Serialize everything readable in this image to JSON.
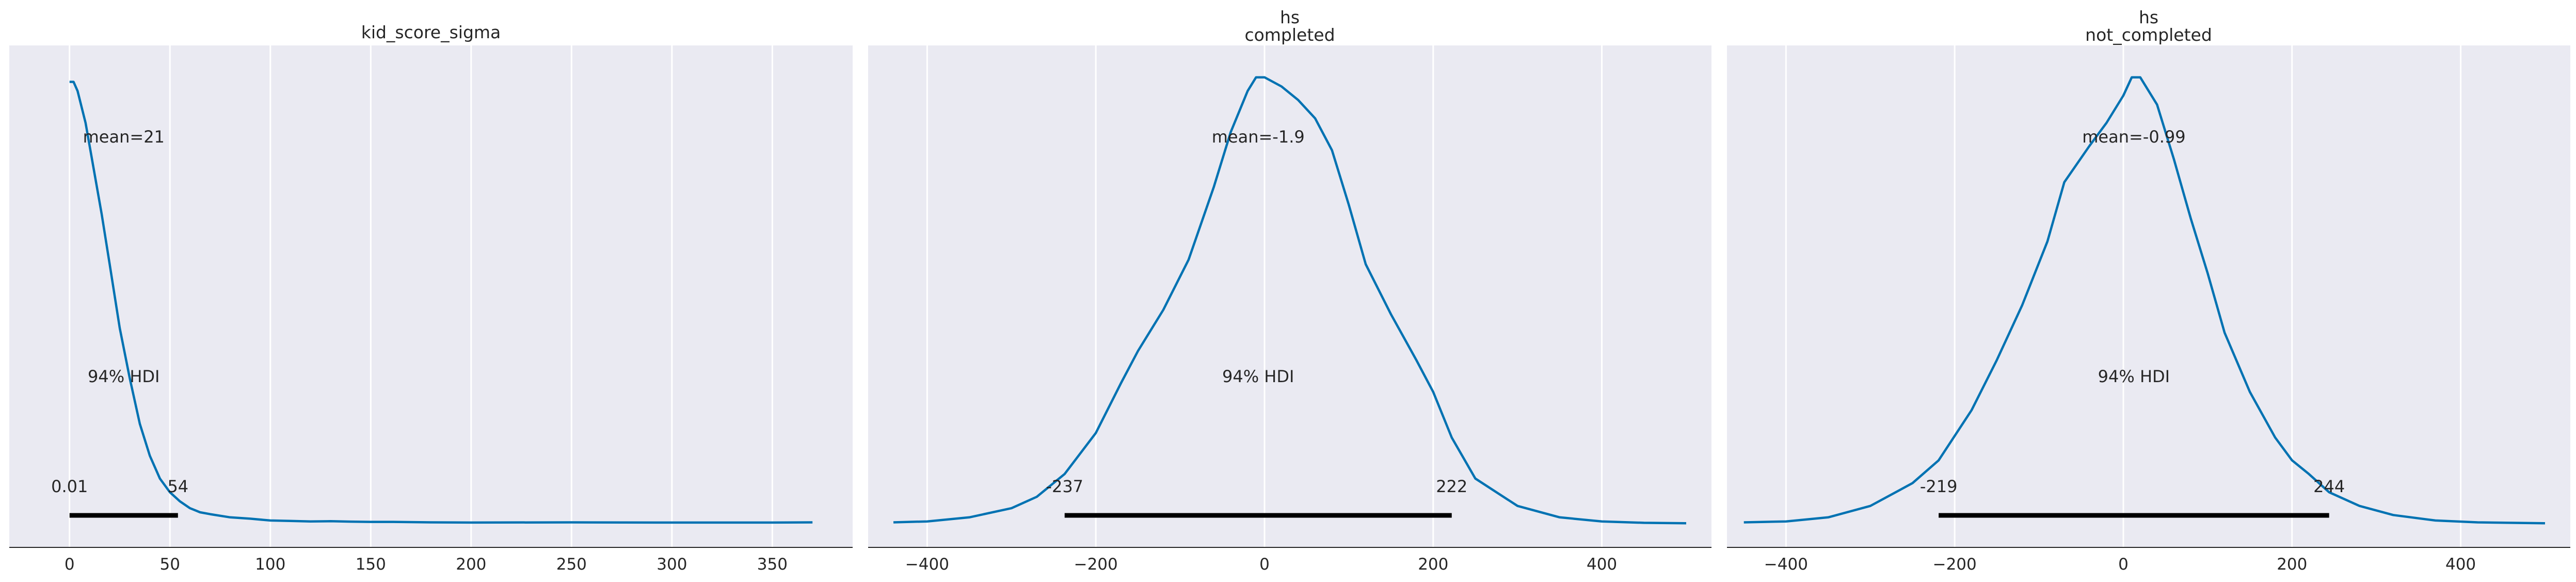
{
  "colors": {
    "curve": "#0072b2",
    "background": "#eaeaf2",
    "grid": "#ffffff",
    "hdi": "#000000"
  },
  "chart_data": [
    {
      "type": "line",
      "title": "kid_score_sigma",
      "xlim": [
        -30,
        390
      ],
      "xticks": [
        0,
        50,
        100,
        150,
        200,
        250,
        300,
        350
      ],
      "xtick_labels": [
        "0",
        "50",
        "100",
        "150",
        "200",
        "250",
        "300",
        "350"
      ],
      "mean_label": "mean=21",
      "hdi_label": "94% HDI",
      "hdi": [
        0.01,
        54
      ],
      "hdi_low_label": "0.01",
      "hdi_high_label": "54",
      "x": [
        0,
        2,
        4,
        8,
        12,
        16,
        20,
        25,
        30,
        35,
        40,
        45,
        50,
        55,
        60,
        65,
        70,
        80,
        90,
        100,
        110,
        120,
        130,
        140,
        150,
        160,
        180,
        200,
        250,
        300,
        350,
        370
      ],
      "density": [
        0.97,
        0.97,
        0.95,
        0.88,
        0.78,
        0.68,
        0.57,
        0.43,
        0.32,
        0.22,
        0.15,
        0.1,
        0.07,
        0.05,
        0.035,
        0.026,
        0.022,
        0.015,
        0.012,
        0.008,
        0.007,
        0.006,
        0.0065,
        0.0055,
        0.005,
        0.005,
        0.004,
        0.0035,
        0.004,
        0.0035,
        0.0035,
        0.004
      ]
    },
    {
      "type": "line",
      "title": "hs\ncompleted",
      "xlim": [
        -470,
        530
      ],
      "xticks": [
        -400,
        -200,
        0,
        200,
        400
      ],
      "xtick_labels": [
        "−400",
        "−200",
        "0",
        "200",
        "400"
      ],
      "mean_label": "mean=-1.9",
      "hdi_label": "94% HDI",
      "hdi": [
        -237,
        222
      ],
      "hdi_low_label": "-237",
      "hdi_high_label": "222",
      "x": [
        -440,
        -400,
        -350,
        -300,
        -270,
        -237,
        -200,
        -170,
        -150,
        -120,
        -90,
        -60,
        -40,
        -20,
        -10,
        0,
        20,
        40,
        60,
        80,
        100,
        120,
        150,
        180,
        200,
        222,
        250,
        300,
        350,
        400,
        450,
        500
      ],
      "density": [
        0.004,
        0.006,
        0.015,
        0.035,
        0.06,
        0.11,
        0.2,
        0.31,
        0.38,
        0.47,
        0.58,
        0.74,
        0.86,
        0.95,
        0.98,
        0.98,
        0.96,
        0.93,
        0.89,
        0.82,
        0.7,
        0.57,
        0.46,
        0.36,
        0.29,
        0.19,
        0.1,
        0.04,
        0.015,
        0.006,
        0.003,
        0.002
      ]
    },
    {
      "type": "line",
      "title": "hs\nnot_completed",
      "xlim": [
        -470,
        530
      ],
      "xticks": [
        -400,
        -200,
        0,
        200,
        400
      ],
      "xtick_labels": [
        "−400",
        "−200",
        "0",
        "200",
        "400"
      ],
      "mean_label": "mean=-0.99",
      "hdi_label": "94% HDI",
      "hdi": [
        -219,
        244
      ],
      "hdi_low_label": "-219",
      "hdi_high_label": "244",
      "x": [
        -450,
        -400,
        -350,
        -300,
        -250,
        -219,
        -180,
        -150,
        -120,
        -90,
        -70,
        -40,
        -20,
        0,
        10,
        20,
        40,
        60,
        80,
        100,
        120,
        150,
        180,
        200,
        220,
        244,
        280,
        320,
        370,
        420,
        500
      ],
      "density": [
        0.004,
        0.006,
        0.015,
        0.04,
        0.09,
        0.14,
        0.25,
        0.36,
        0.48,
        0.62,
        0.75,
        0.83,
        0.88,
        0.94,
        0.98,
        0.98,
        0.92,
        0.8,
        0.67,
        0.55,
        0.42,
        0.29,
        0.19,
        0.14,
        0.11,
        0.07,
        0.04,
        0.02,
        0.008,
        0.004,
        0.002
      ]
    }
  ]
}
